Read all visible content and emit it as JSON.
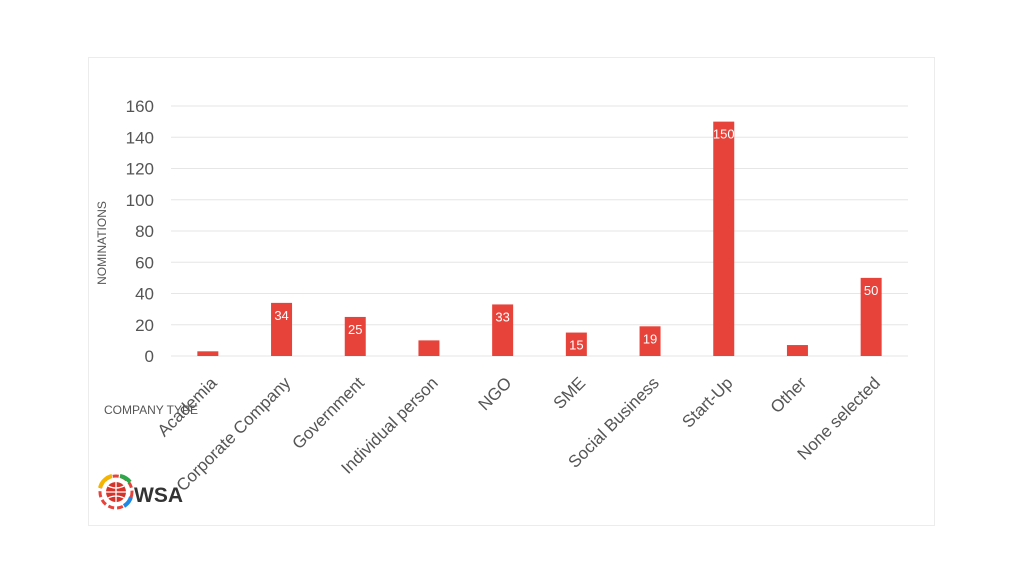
{
  "colors": {
    "bar": "#e8433a",
    "grid": "#e6e6e6",
    "text": "#555555"
  },
  "logo": {
    "text": "WSA",
    "icon": "globe-icon"
  },
  "chart_data": {
    "type": "bar",
    "title": "",
    "xlabel": "COMPANY TYPE",
    "ylabel": "NOMINATIONS",
    "ylim": [
      0,
      160
    ],
    "yticks": [
      0,
      20,
      40,
      60,
      80,
      100,
      120,
      140,
      160
    ],
    "grid": true,
    "categories": [
      "Academia",
      "Corporate Company",
      "Government",
      "Individual person",
      "NGO",
      "SME",
      "Social Business",
      "Start-Up",
      "Other",
      "None selected"
    ],
    "values": [
      3,
      34,
      25,
      10,
      33,
      15,
      19,
      150,
      7,
      50
    ],
    "data_labels": [
      "",
      "34",
      "25",
      "",
      "33",
      "15",
      "19",
      "150",
      "",
      "50"
    ]
  }
}
